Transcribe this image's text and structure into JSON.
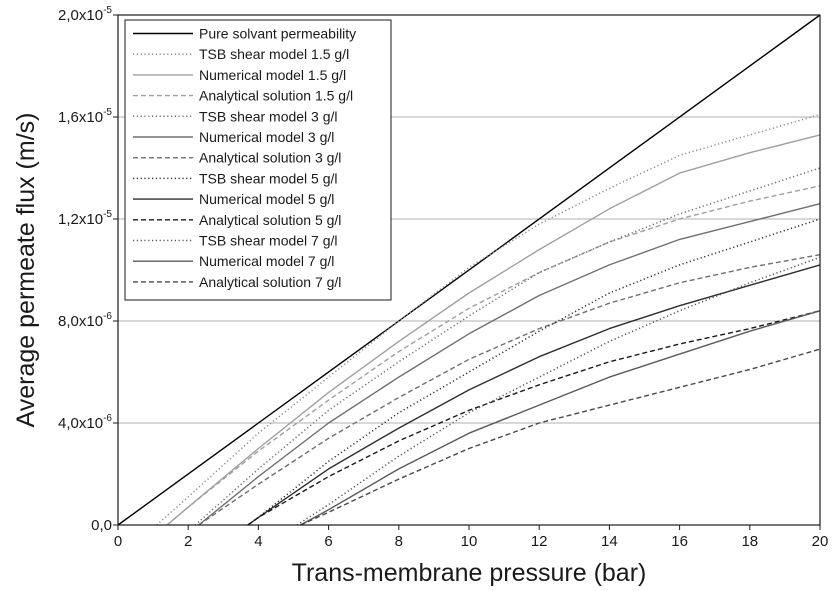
{
  "chart_data": {
    "type": "line",
    "title": "",
    "xlabel": "Trans-membrane pressure (bar)",
    "ylabel": "Average permeate flux (m/s)",
    "xlim": [
      0,
      20
    ],
    "ylim": [
      0,
      2e-05
    ],
    "x_ticks": [
      {
        "value": 0,
        "label": "0"
      },
      {
        "value": 2,
        "label": "2"
      },
      {
        "value": 4,
        "label": "4"
      },
      {
        "value": 6,
        "label": "6"
      },
      {
        "value": 8,
        "label": "8"
      },
      {
        "value": 10,
        "label": "10"
      },
      {
        "value": 12,
        "label": "12"
      },
      {
        "value": 14,
        "label": "14"
      },
      {
        "value": 16,
        "label": "16"
      },
      {
        "value": 18,
        "label": "18"
      },
      {
        "value": 20,
        "label": "20"
      }
    ],
    "y_ticks": [
      {
        "value": 0,
        "label": "0,0",
        "exp": ""
      },
      {
        "value": 4e-06,
        "label": "4,0x10",
        "exp": "-6"
      },
      {
        "value": 8e-06,
        "label": "8,0x10",
        "exp": "-6"
      },
      {
        "value": 1.2e-05,
        "label": "1,2x10",
        "exp": "-5"
      },
      {
        "value": 1.6e-05,
        "label": "1,6x10",
        "exp": "-5"
      },
      {
        "value": 2e-05,
        "label": "2,0x10",
        "exp": "-5"
      }
    ],
    "grid": "horizontal",
    "legend_position": "top-left",
    "series": [
      {
        "name": "Pure solvant permeability",
        "color": "#000000",
        "dash": "solid",
        "x": [
          0,
          20
        ],
        "y": [
          0,
          2e-05
        ]
      },
      {
        "name": "TSB shear  model 1.5 g/l",
        "color": "#8c8c8c",
        "dash": "dotted",
        "x": [
          1.1,
          2,
          4,
          6,
          8,
          10,
          12,
          14,
          16,
          18,
          20
        ],
        "y": [
          0,
          1.1e-06,
          3.6e-06,
          5.8e-06,
          8e-06,
          1.01e-05,
          1.18e-05,
          1.32e-05,
          1.45e-05,
          1.53e-05,
          1.61e-05
        ]
      },
      {
        "name": "Numerical model 1.5 g/l",
        "color": "#a0a0a0",
        "dash": "solid",
        "x": [
          1.4,
          2,
          4,
          6,
          8,
          10,
          12,
          14,
          16,
          18,
          20
        ],
        "y": [
          0,
          7e-07,
          3e-06,
          5.2e-06,
          7.2e-06,
          9.1e-06,
          1.08e-05,
          1.24e-05,
          1.38e-05,
          1.46e-05,
          1.53e-05
        ]
      },
      {
        "name": "Analytical solution 1.5 g/l",
        "color": "#a0a0a0",
        "dash": "dashed",
        "x": [
          1.4,
          2,
          4,
          6,
          8,
          10,
          12,
          14,
          16,
          18,
          20
        ],
        "y": [
          0,
          7e-07,
          2.9e-06,
          4.9e-06,
          6.8e-06,
          8.5e-06,
          9.9e-06,
          1.11e-05,
          1.2e-05,
          1.27e-05,
          1.33e-05
        ]
      },
      {
        "name": "TSB shear model 3 g/l",
        "color": "#6e6e6e",
        "dash": "dotted",
        "x": [
          2.2,
          4,
          6,
          8,
          10,
          12,
          14,
          16,
          18,
          20
        ],
        "y": [
          0,
          2.2e-06,
          4.5e-06,
          6.4e-06,
          8.2e-06,
          9.9e-06,
          1.11e-05,
          1.22e-05,
          1.31e-05,
          1.4e-05
        ]
      },
      {
        "name": "Numerical model 3 g/l",
        "color": "#707070",
        "dash": "solid",
        "x": [
          2.3,
          4,
          6,
          8,
          10,
          12,
          14,
          16,
          18,
          20
        ],
        "y": [
          0,
          1.9e-06,
          4e-06,
          5.8e-06,
          7.5e-06,
          9e-06,
          1.02e-05,
          1.12e-05,
          1.19e-05,
          1.26e-05
        ]
      },
      {
        "name": "Analytical solution 3 g/l",
        "color": "#707070",
        "dash": "dashed",
        "x": [
          2.3,
          4,
          6,
          8,
          10,
          12,
          14,
          16,
          18,
          20
        ],
        "y": [
          0,
          1.6e-06,
          3.4e-06,
          5e-06,
          6.5e-06,
          7.7e-06,
          8.7e-06,
          9.5e-06,
          1.01e-05,
          1.06e-05
        ]
      },
      {
        "name": "TSB shear model 5 g/l",
        "color": "#303030",
        "dash": "dotted",
        "x": [
          3.7,
          4,
          6,
          8,
          10,
          12,
          14,
          16,
          18,
          20
        ],
        "y": [
          0,
          3e-07,
          2.5e-06,
          4.4e-06,
          6e-06,
          7.6e-06,
          9.1e-06,
          1.02e-05,
          1.11e-05,
          1.2e-05
        ]
      },
      {
        "name": "Numerical model 5 g/l",
        "color": "#2e2e2e",
        "dash": "solid",
        "x": [
          3.7,
          4,
          6,
          8,
          10,
          12,
          14,
          16,
          18,
          20
        ],
        "y": [
          0,
          3e-07,
          2.2e-06,
          3.8e-06,
          5.3e-06,
          6.6e-06,
          7.7e-06,
          8.6e-06,
          9.4e-06,
          1.02e-05
        ]
      },
      {
        "name": "Analytical solution 5 g/l",
        "color": "#1a1a1a",
        "dash": "dashed",
        "x": [
          3.7,
          4,
          6,
          8,
          10,
          12,
          14,
          16,
          18,
          20
        ],
        "y": [
          0,
          3e-07,
          1.9e-06,
          3.3e-06,
          4.5e-06,
          5.5e-06,
          6.4e-06,
          7.1e-06,
          7.7e-06,
          8.4e-06
        ]
      },
      {
        "name": "TSB shear model 7 g/l",
        "color": "#555555",
        "dash": "dotted",
        "x": [
          5.1,
          6,
          8,
          10,
          12,
          14,
          16,
          18,
          20
        ],
        "y": [
          0,
          8e-07,
          2.7e-06,
          4.4e-06,
          5.8e-06,
          7.2e-06,
          8.4e-06,
          9.5e-06,
          1.05e-05
        ]
      },
      {
        "name": "Numerical model 7 g/l",
        "color": "#5a5a5a",
        "dash": "solid",
        "x": [
          5.2,
          6,
          8,
          10,
          12,
          14,
          16,
          18,
          20
        ],
        "y": [
          0,
          6e-07,
          2.2e-06,
          3.6e-06,
          4.7e-06,
          5.8e-06,
          6.7e-06,
          7.6e-06,
          8.4e-06
        ]
      },
      {
        "name": "Analytical solution 7 g/l",
        "color": "#4a4a4a",
        "dash": "dashed",
        "x": [
          5.2,
          6,
          8,
          10,
          12,
          14,
          16,
          18,
          20
        ],
        "y": [
          0,
          5e-07,
          1.8e-06,
          3e-06,
          4e-06,
          4.7e-06,
          5.4e-06,
          6.1e-06,
          6.9e-06
        ]
      }
    ]
  }
}
